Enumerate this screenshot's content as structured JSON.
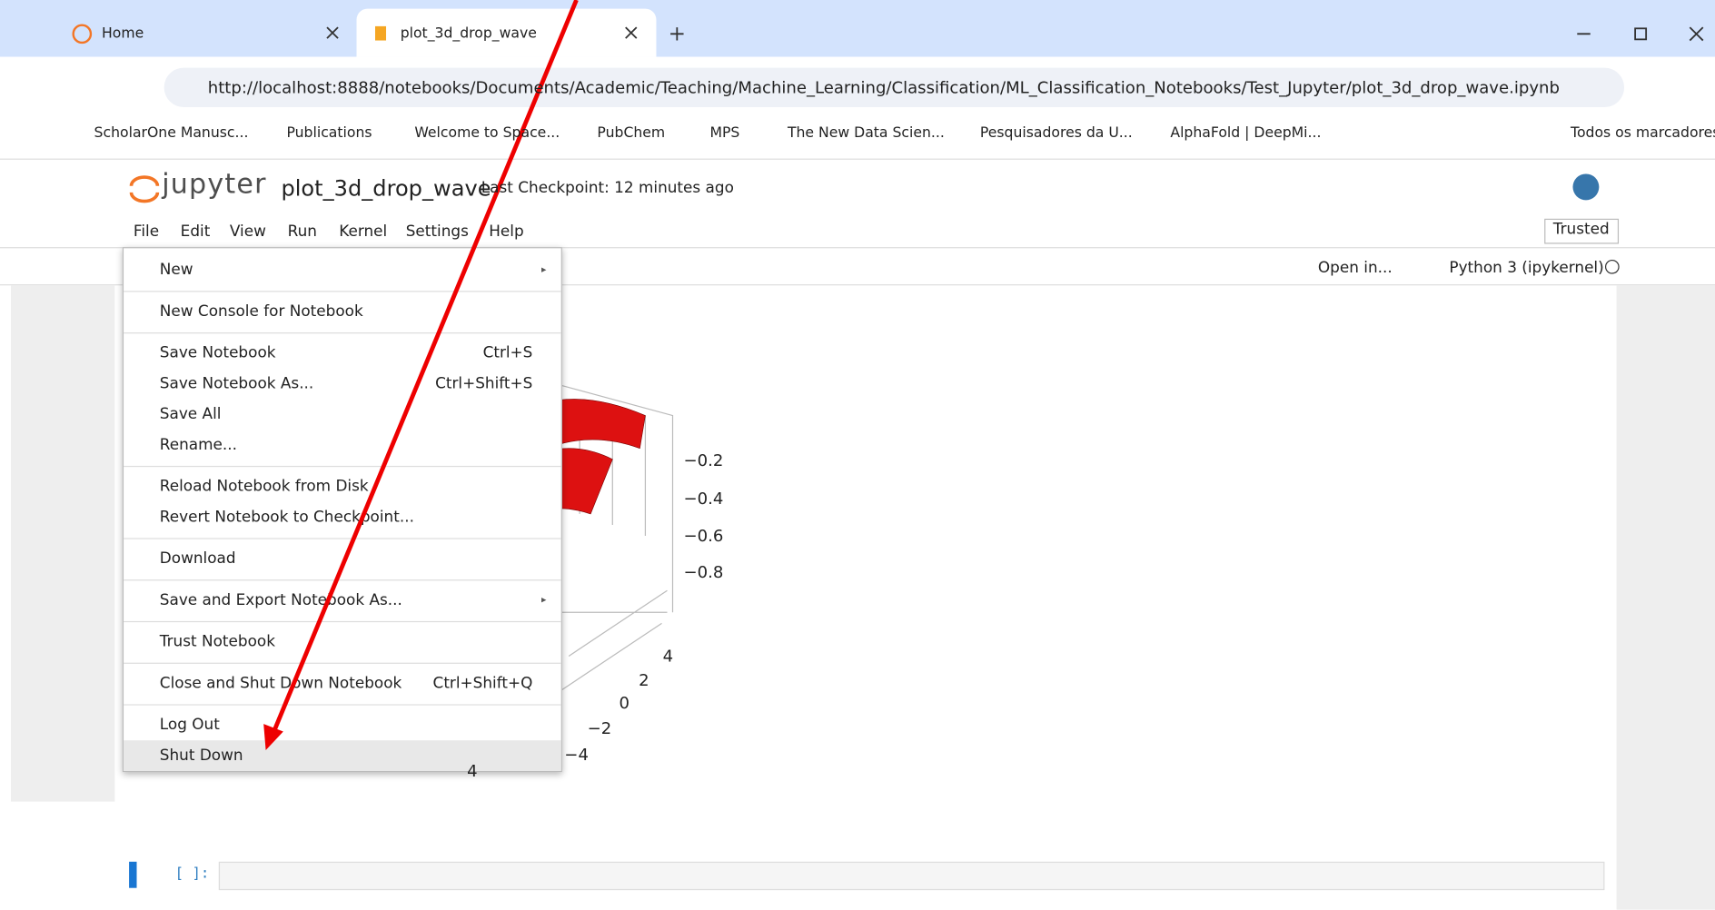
{
  "browser": {
    "tabs": [
      {
        "title": "Home"
      },
      {
        "title": "plot_3d_drop_wave"
      }
    ],
    "url": "http://localhost:8888/notebooks/Documents/Academic/Teaching/Machine_Learning/Classification/ML_Classification_Notebooks/Test_Jupyter/plot_3d_drop_wave.ipynb",
    "bookmarks": [
      "ScholarOne Manusc...",
      "Publications",
      "Welcome to Space...",
      "PubChem",
      "MPS",
      "The New Data Scien...",
      "Pesquisadores da U...",
      "AlphaFold | DeepMi..."
    ],
    "all_bookmarks": "Todos os marcadores"
  },
  "notebook": {
    "logo": "jupyter",
    "name": "plot_3d_drop_wave",
    "checkpoint": "Last Checkpoint: 12 minutes ago",
    "menubar": [
      "File",
      "Edit",
      "View",
      "Run",
      "Kernel",
      "Settings",
      "Help"
    ],
    "trusted": "Trusted",
    "open_in": "Open in...",
    "kernel": "Python 3 (ipykernel)",
    "cell_prompt": "[ ]:"
  },
  "file_menu": {
    "groups": [
      [
        {
          "label": "New",
          "has_submenu": true
        }
      ],
      [
        {
          "label": "New Console for Notebook"
        }
      ],
      [
        {
          "label": "Save Notebook",
          "shortcut": "Ctrl+S"
        },
        {
          "label": "Save Notebook As...",
          "shortcut": "Ctrl+Shift+S"
        },
        {
          "label": "Save All"
        },
        {
          "label": "Rename..."
        }
      ],
      [
        {
          "label": "Reload Notebook from Disk"
        },
        {
          "label": "Revert Notebook to Checkpoint..."
        }
      ],
      [
        {
          "label": "Download"
        }
      ],
      [
        {
          "label": "Save and Export Notebook As...",
          "has_submenu": true
        }
      ],
      [
        {
          "label": "Trust Notebook"
        }
      ],
      [
        {
          "label": "Close and Shut Down Notebook",
          "shortcut": "Ctrl+Shift+Q"
        }
      ],
      [
        {
          "label": "Log Out"
        },
        {
          "label": "Shut Down",
          "highlighted": true
        }
      ]
    ]
  },
  "plot": {
    "z_ticks": [
      "−0.2",
      "−0.4",
      "−0.6",
      "−0.8"
    ],
    "y_ticks": [
      "4",
      "2",
      "0",
      "−2",
      "−4"
    ],
    "x_ticks": [
      "4"
    ]
  }
}
